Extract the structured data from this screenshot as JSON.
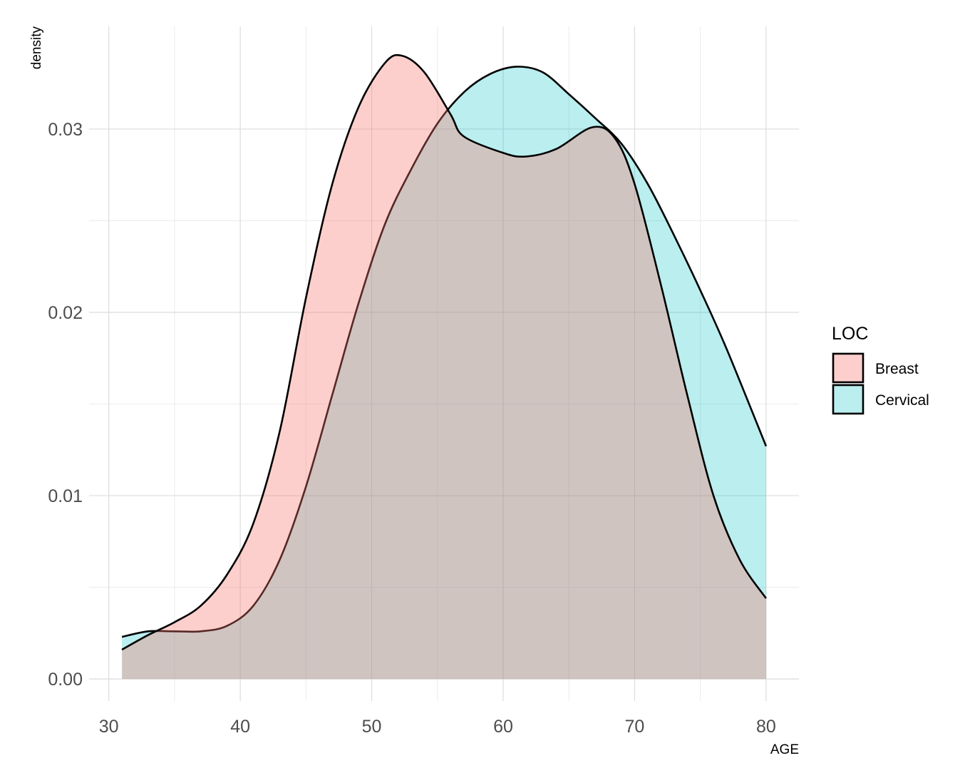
{
  "chart_data": {
    "type": "area",
    "chart_subtype": "density",
    "xlabel": "AGE",
    "ylabel": "density",
    "xlim": [
      28.5,
      82.5
    ],
    "ylim": [
      -0.0012,
      0.0356
    ],
    "x_ticks": [
      30,
      40,
      50,
      60,
      70,
      80
    ],
    "x_tick_labels": [
      "30",
      "40",
      "50",
      "60",
      "70",
      "80"
    ],
    "y_ticks": [
      0.0,
      0.01,
      0.02,
      0.03
    ],
    "y_tick_labels": [
      "0.00",
      "0.01",
      "0.02",
      "0.03"
    ],
    "grid": true,
    "legend": {
      "title": "LOC",
      "position": "right"
    },
    "series": [
      {
        "name": "Breast",
        "color": "#F8766D",
        "fill_opacity": 0.35,
        "x": [
          31,
          33,
          35,
          37,
          39,
          41,
          43,
          45,
          47,
          49,
          51,
          52.3,
          54,
          56,
          57,
          60,
          61.7,
          64,
          66.8,
          68.5,
          70,
          72,
          74,
          76,
          78,
          80
        ],
        "y": [
          0.0016,
          0.0024,
          0.0031,
          0.004,
          0.0057,
          0.0085,
          0.0135,
          0.0208,
          0.027,
          0.0312,
          0.0336,
          0.034,
          0.0331,
          0.0308,
          0.0296,
          0.0287,
          0.0285,
          0.0289,
          0.0301,
          0.0295,
          0.027,
          0.0215,
          0.0155,
          0.01,
          0.0065,
          0.0044
        ]
      },
      {
        "name": "Cervical",
        "color": "#00BFC4",
        "fill_opacity": 0.27,
        "x": [
          31,
          33,
          35,
          37,
          39,
          41,
          43,
          45,
          47,
          49,
          51,
          53,
          55,
          57,
          59,
          61,
          63,
          65,
          67,
          69,
          71,
          73,
          75,
          77,
          80
        ],
        "y": [
          0.0023,
          0.0026,
          0.0026,
          0.0026,
          0.0029,
          0.004,
          0.0065,
          0.0105,
          0.0155,
          0.0205,
          0.0248,
          0.0278,
          0.0303,
          0.032,
          0.033,
          0.0334,
          0.0331,
          0.0319,
          0.0306,
          0.0292,
          0.027,
          0.0242,
          0.0212,
          0.018,
          0.0127
        ]
      }
    ]
  }
}
